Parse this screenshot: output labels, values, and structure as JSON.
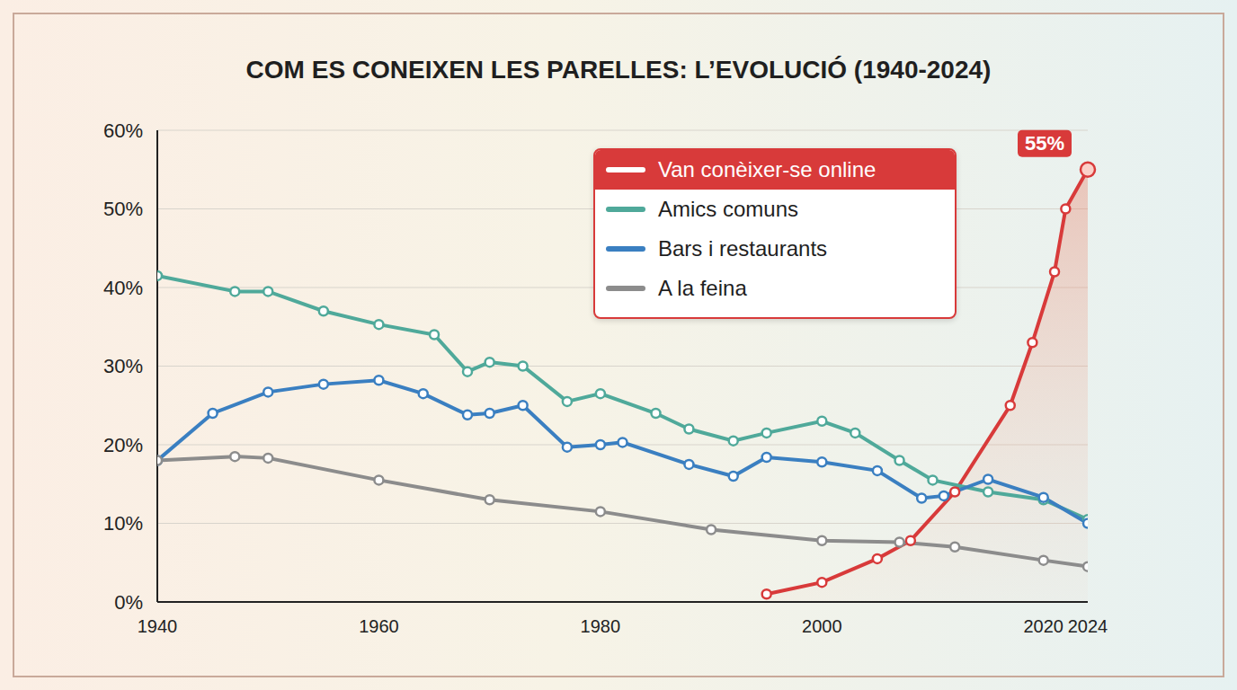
{
  "chart_data": {
    "type": "line",
    "title": "COM ES CONEIXEN LES PARELLES: L’EVOLUCIÓ (1940-2024)",
    "xlim": [
      1940,
      2024
    ],
    "xticks": [
      1940,
      1960,
      1980,
      2000,
      2020,
      2024
    ],
    "ylim": [
      0,
      60
    ],
    "yticks": [
      {
        "value": 0,
        "label": "0%"
      },
      {
        "value": 10,
        "label": "10%"
      },
      {
        "value": 20,
        "label": "20%"
      },
      {
        "value": 30,
        "label": "30%"
      },
      {
        "value": 40,
        "label": "40%"
      },
      {
        "value": 50,
        "label": "50%"
      },
      {
        "value": 60,
        "label": "60%"
      }
    ],
    "grid": true,
    "legend": "top",
    "series": [
      {
        "name": "Van conèixer-se online",
        "color": "#d83a3a",
        "type": "area",
        "marker": "circle",
        "x": [
          1995,
          2000,
          2005,
          2008,
          2012,
          2017,
          2019,
          2021,
          2022,
          2024
        ],
        "values": [
          1,
          2.5,
          5.5,
          7.8,
          14,
          25,
          33,
          42,
          50,
          55
        ]
      },
      {
        "name": "Amics comuns",
        "color": "#4fa99a",
        "type": "line",
        "marker": "circle",
        "x": [
          1940,
          1947,
          1950,
          1955,
          1960,
          1965,
          1968,
          1970,
          1973,
          1977,
          1980,
          1985,
          1988,
          1992,
          1995,
          2000,
          2003,
          2007,
          2010,
          2015,
          2020,
          2024
        ],
        "values": [
          41.5,
          39.5,
          39.5,
          37,
          35.3,
          34,
          29.3,
          30.5,
          30,
          25.5,
          26.5,
          24,
          22,
          20.5,
          21.5,
          23,
          21.5,
          18,
          15.5,
          14,
          13,
          10.5
        ]
      },
      {
        "name": "Bars i restaurants",
        "color": "#3a7fc1",
        "type": "line",
        "marker": "circle",
        "x": [
          1940,
          1945,
          1950,
          1955,
          1960,
          1964,
          1968,
          1970,
          1973,
          1977,
          1980,
          1982,
          1988,
          1992,
          1995,
          2000,
          2005,
          2009,
          2011,
          2015,
          2020,
          2024
        ],
        "values": [
          18,
          24,
          26.7,
          27.7,
          28.2,
          26.5,
          23.8,
          24,
          25,
          19.7,
          20,
          20.3,
          17.5,
          16,
          18.4,
          17.8,
          16.7,
          13.2,
          13.5,
          15.6,
          13.3,
          10
        ]
      },
      {
        "name": "A la feina",
        "color": "#8c8c8c",
        "type": "line",
        "marker": "circle",
        "x": [
          1940,
          1947,
          1950,
          1960,
          1970,
          1980,
          1990,
          2000,
          2007,
          2012,
          2020,
          2024
        ],
        "values": [
          18,
          18.5,
          18.3,
          15.5,
          13,
          11.5,
          9.2,
          7.8,
          7.6,
          7,
          5.3,
          4.5
        ]
      }
    ],
    "annotations": [
      {
        "x": 2024,
        "y": 55,
        "label": "55%"
      }
    ]
  }
}
